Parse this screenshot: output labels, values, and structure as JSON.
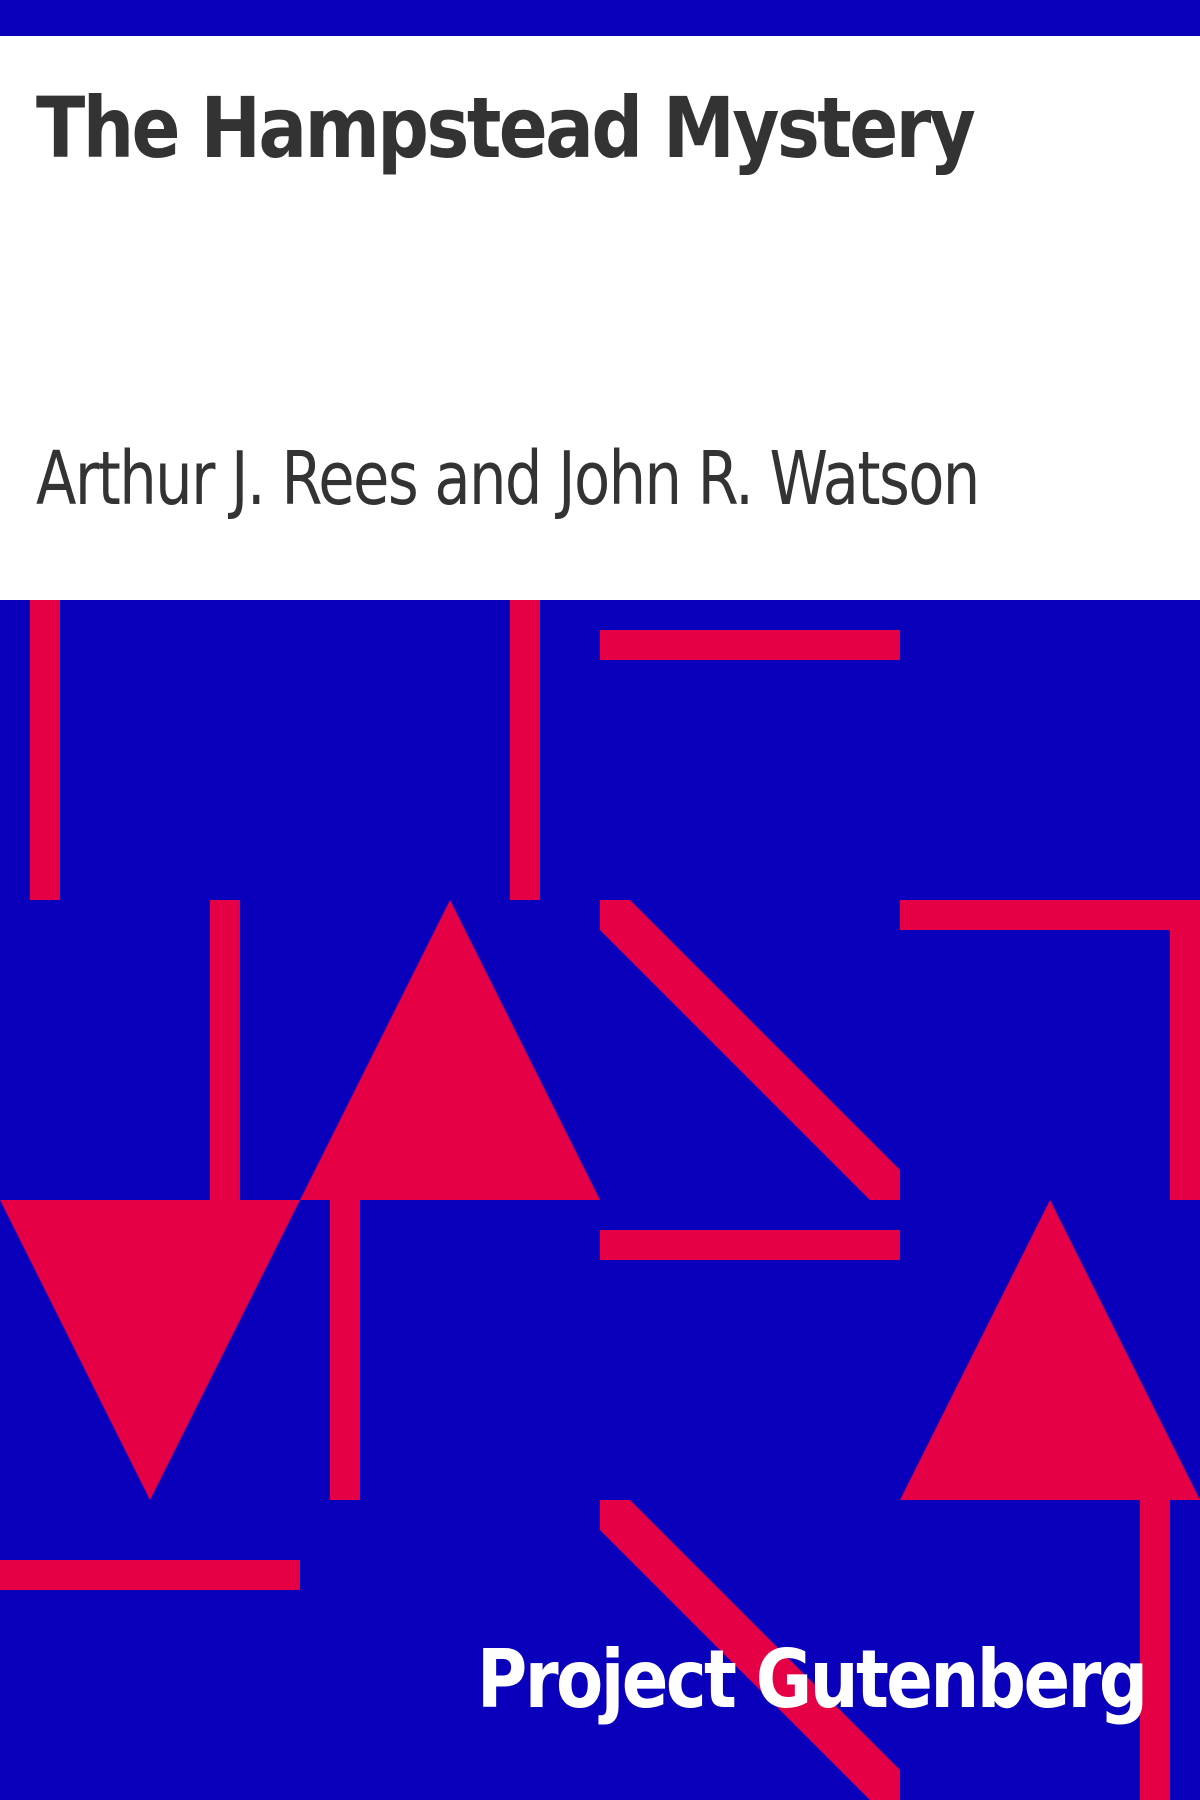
{
  "cover": {
    "title": "The Hampstead Mystery",
    "author": "Arthur J. Rees and John R. Watson",
    "publisher": "Project Gutenberg"
  },
  "colors": {
    "background": "#0a00bb",
    "shape": "#e50045",
    "panel": "#ffffff",
    "text_dark": "#333333",
    "text_light": "#ffffff"
  }
}
